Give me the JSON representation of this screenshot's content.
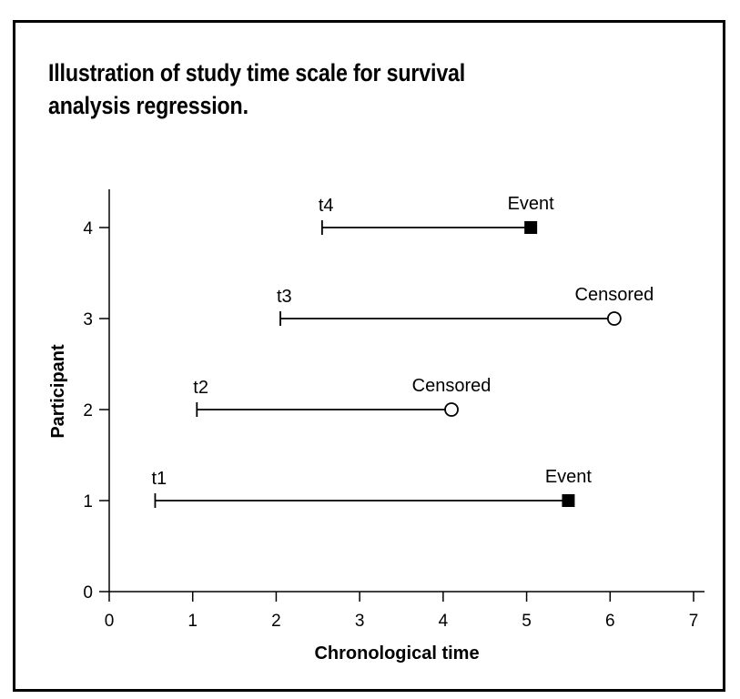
{
  "figure": {
    "title": "Illustration of study time scale for survival analysis regression."
  },
  "chart_data": {
    "type": "line",
    "title": "Illustration of study time scale for survival analysis regression.",
    "xlabel": "Chronological time",
    "ylabel": "Participant",
    "xlim": [
      0,
      7
    ],
    "ylim": [
      0,
      4
    ],
    "xticks": [
      "0",
      "1",
      "2",
      "3",
      "4",
      "5",
      "6",
      "7"
    ],
    "yticks": [
      "0",
      "1",
      "2",
      "3",
      "4"
    ],
    "grid": false,
    "legend": "none",
    "series": [
      {
        "participant": 1,
        "start": 0.55,
        "end": 5.5,
        "start_label": "t1",
        "outcome": "Event",
        "marker": "filled-square"
      },
      {
        "participant": 2,
        "start": 1.05,
        "end": 4.1,
        "start_label": "t2",
        "outcome": "Censored",
        "marker": "open-circle"
      },
      {
        "participant": 3,
        "start": 2.05,
        "end": 6.05,
        "start_label": "t3",
        "outcome": "Censored",
        "marker": "open-circle"
      },
      {
        "participant": 4,
        "start": 2.55,
        "end": 5.05,
        "start_label": "t4",
        "outcome": "Event",
        "marker": "filled-square"
      }
    ],
    "colors": {
      "line": "#000000",
      "marker_fill": "#000000",
      "background": "#ffffff"
    }
  }
}
